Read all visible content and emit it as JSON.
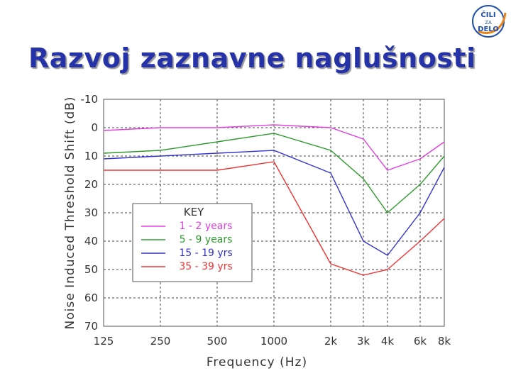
{
  "slide": {
    "title": "Razvoj zaznavne naglušnosti",
    "logo": {
      "line1": "ČILI",
      "line2": "ZA",
      "line3": "DELO",
      "colors": {
        "primary": "#1f4fa6",
        "accent": "#e8841c"
      }
    }
  },
  "chart_data": {
    "type": "line",
    "xlabel": "Frequency (Hz)",
    "ylabel": "Noise Induced Threshold Shift (dB)",
    "x_categories": [
      "125",
      "250",
      "500",
      "1000",
      "2k",
      "3k",
      "4k",
      "6k",
      "8k"
    ],
    "y_ticks": [
      "-10",
      "0",
      "10",
      "20",
      "30",
      "40",
      "50",
      "60",
      "70"
    ],
    "ylim": [
      -10,
      70
    ],
    "y_inverted": true,
    "grid": true,
    "legend": {
      "title": "KEY",
      "position": "left-middle"
    },
    "series": [
      {
        "name": "1 - 2  years",
        "color": "#e040e0",
        "values": [
          1,
          0,
          0,
          -1,
          0,
          4,
          15,
          11,
          5
        ]
      },
      {
        "name": "5 - 9  years",
        "color": "#2e9a2e",
        "values": [
          9,
          8,
          5,
          2,
          8,
          18,
          30,
          20,
          10
        ]
      },
      {
        "name": "15 - 19  yrs",
        "color": "#3333cc",
        "values": [
          11,
          10,
          9,
          8,
          16,
          40,
          45,
          30,
          14
        ]
      },
      {
        "name": "35 - 39  yrs",
        "color": "#ee3333",
        "values": [
          15,
          15,
          15,
          12,
          48,
          52,
          50,
          40,
          32
        ]
      }
    ]
  }
}
